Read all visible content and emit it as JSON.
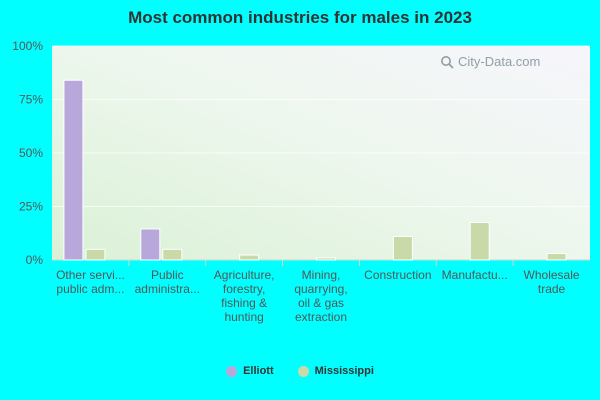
{
  "chart_data": {
    "type": "bar",
    "title": "Most common industries for males in 2023",
    "categories": [
      [
        "Other servi...",
        "public adm..."
      ],
      [
        "Public",
        "administra..."
      ],
      [
        "Agriculture,",
        "forestry,",
        "fishing &",
        "hunting"
      ],
      [
        "Mining,",
        "quarrying,",
        "oil & gas",
        "extraction"
      ],
      [
        "Construction"
      ],
      [
        "Manufactu..."
      ],
      [
        "Wholesale",
        "trade"
      ]
    ],
    "series": [
      {
        "name": "Elliott",
        "color": "#b8a7da",
        "values": [
          84,
          14.5,
          0,
          0,
          0,
          0,
          0
        ]
      },
      {
        "name": "Mississippi",
        "color": "#c9d9a8",
        "values": [
          5,
          5,
          2.3,
          1,
          11,
          17.5,
          3
        ]
      }
    ],
    "ylim": [
      0,
      100
    ],
    "yticks": [
      "0%",
      "25%",
      "50%",
      "75%",
      "100%"
    ],
    "ytick_values": [
      0,
      25,
      50,
      75,
      100
    ],
    "grid": true,
    "legend": "bottom-center",
    "watermark": "City-Data.com"
  }
}
